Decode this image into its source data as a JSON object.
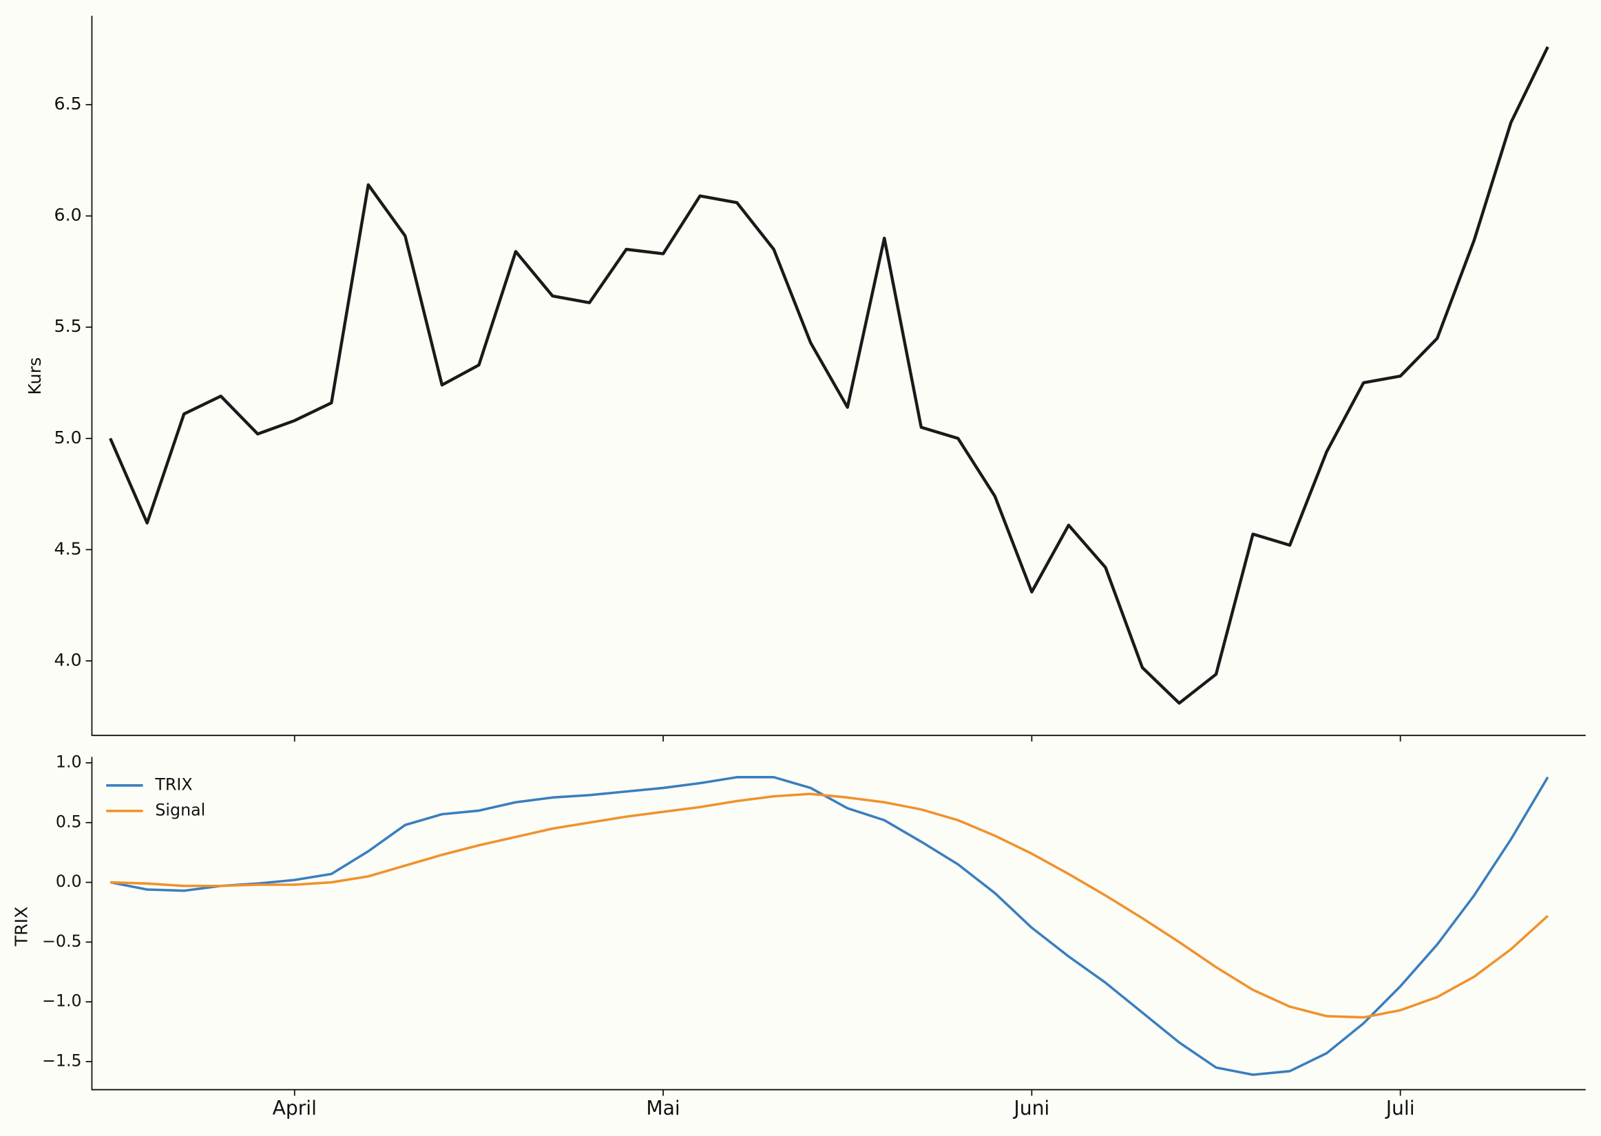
{
  "chart_data": [
    {
      "type": "line",
      "y_label": "Kurs",
      "series": [
        {
          "name": "Kurs",
          "color": "#1a1a1a",
          "values": [
            5.0,
            4.62,
            5.11,
            5.19,
            5.02,
            5.08,
            5.16,
            6.14,
            5.91,
            5.24,
            5.33,
            5.84,
            5.64,
            5.61,
            5.85,
            5.83,
            6.09,
            6.06,
            5.85,
            5.43,
            5.14,
            5.9,
            5.05,
            5.0,
            4.74,
            4.31,
            4.61,
            4.42,
            3.97,
            3.81,
            3.94,
            4.57,
            4.52,
            4.94,
            5.25,
            5.28,
            5.45,
            5.89,
            6.42,
            6.76
          ]
        }
      ],
      "ylim": [
        3.665,
        6.9
      ],
      "yticks": [
        {
          "value": 4,
          "label": "4.0"
        },
        {
          "value": 4.5,
          "label": "4.5"
        },
        {
          "value": 5,
          "label": "5.0"
        },
        {
          "value": 5.5,
          "label": "5.5"
        },
        {
          "value": 6,
          "label": "6.0"
        },
        {
          "value": 6.5,
          "label": "6.5"
        }
      ]
    },
    {
      "type": "line",
      "y_label": "TRIX",
      "categories": [
        null,
        null,
        null,
        null,
        null,
        "April",
        null,
        null,
        null,
        null,
        null,
        null,
        null,
        null,
        null,
        "Mai",
        null,
        null,
        null,
        null,
        null,
        null,
        null,
        null,
        null,
        "Juni",
        null,
        null,
        null,
        null,
        null,
        null,
        null,
        null,
        null,
        "Juli",
        null,
        null,
        null,
        null
      ],
      "series": [
        {
          "name": "TRIX",
          "color": "#3a7ebf",
          "values": [
            0,
            -0.06,
            -0.07,
            -0.03,
            -0.01,
            0.02,
            0.07,
            0.26,
            0.48,
            0.57,
            0.6,
            0.67,
            0.71,
            0.73,
            0.76,
            0.79,
            0.83,
            0.88,
            0.88,
            0.79,
            0.62,
            0.52,
            0.34,
            0.15,
            -0.09,
            -0.38,
            -0.62,
            -0.84,
            -1.09,
            -1.34,
            -1.55,
            -1.61,
            -1.58,
            -1.43,
            -1.18,
            -0.87,
            -0.52,
            -0.11,
            0.36,
            0.88
          ]
        },
        {
          "name": "Signal",
          "color": "#f0922b",
          "values": [
            0,
            -0.01,
            -0.03,
            -0.03,
            -0.02,
            -0.02,
            0,
            0.05,
            0.14,
            0.23,
            0.31,
            0.38,
            0.45,
            0.5,
            0.55,
            0.59,
            0.63,
            0.68,
            0.72,
            0.74,
            0.71,
            0.67,
            0.61,
            0.52,
            0.39,
            0.24,
            0.07,
            -0.11,
            -0.3,
            -0.5,
            -0.71,
            -0.9,
            -1.04,
            -1.12,
            -1.13,
            -1.07,
            -0.96,
            -0.79,
            -0.56,
            -0.28
          ]
        }
      ],
      "ylim": [
        -1.735,
        1.05
      ],
      "yticks": [
        {
          "value": -1.5,
          "label": "−1.5"
        },
        {
          "value": -1,
          "label": "−1.0"
        },
        {
          "value": -0.5,
          "label": "−0.5"
        },
        {
          "value": 0,
          "label": "0.0"
        },
        {
          "value": 0.5,
          "label": "0.5"
        },
        {
          "value": 1,
          "label": "1.0"
        }
      ],
      "legend": "upper left"
    }
  ]
}
